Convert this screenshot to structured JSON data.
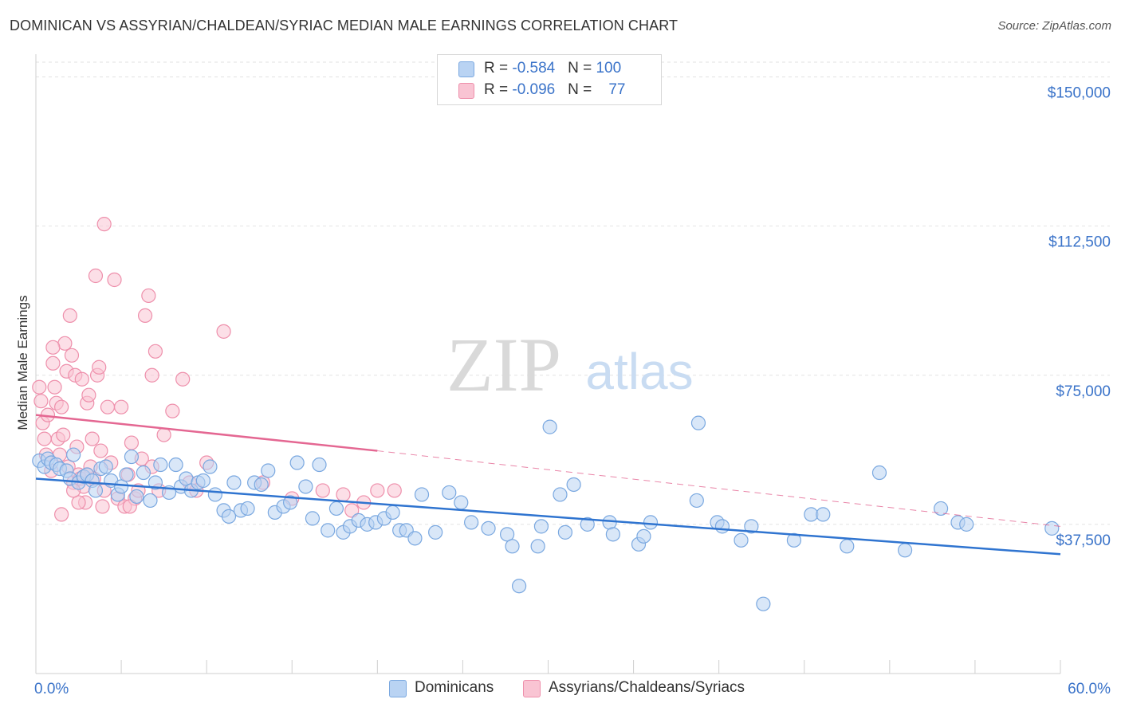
{
  "title": "DOMINICAN VS ASSYRIAN/CHALDEAN/SYRIAC MEDIAN MALE EARNINGS CORRELATION CHART",
  "source": "Source: ZipAtlas.com",
  "watermark": {
    "zip": "ZIP",
    "atlas": "atlas"
  },
  "legend": {
    "r_label": "R = ",
    "n_label": "N = ",
    "items": [
      {
        "name": "Dominicans",
        "r": "-0.584",
        "n": "100"
      },
      {
        "name": "Assyrians/Chaldeans/Syriacs",
        "r": "-0.096",
        "n": "77"
      }
    ]
  },
  "colors": {
    "blue_fill": "#b9d3f3",
    "blue_stroke": "#7aa8e0",
    "blue_line": "#2f74d0",
    "pink_fill": "#f9c4d3",
    "pink_stroke": "#ee8fab",
    "pink_line": "#e46792",
    "axis_text": "#3a73c9",
    "grid": "#e2e2e2"
  },
  "chart_data": {
    "type": "scatter",
    "title": "DOMINICAN VS ASSYRIAN/CHALDEAN/SYRIAC MEDIAN MALE EARNINGS CORRELATION CHART",
    "xlabel": "",
    "ylabel": "Median Male Earnings",
    "xlim": [
      0,
      60
    ],
    "ylim": [
      0,
      155000
    ],
    "x_tick_labels": [
      "0.0%",
      "60.0%"
    ],
    "y_ticks": [
      37500,
      75000,
      112500,
      150000
    ],
    "y_tick_labels": [
      "$37,500",
      "$75,000",
      "$112,500",
      "$150,000"
    ],
    "series": [
      {
        "name": "Dominicans",
        "r": -0.584,
        "n": 100,
        "trend": {
          "x": [
            0,
            60
          ],
          "y": [
            49000,
            30000
          ],
          "style": "solid"
        },
        "points": [
          [
            0.2,
            53500
          ],
          [
            0.5,
            52000
          ],
          [
            0.7,
            54000
          ],
          [
            0.9,
            53000
          ],
          [
            1.2,
            52500
          ],
          [
            1.4,
            51500
          ],
          [
            1.8,
            51000
          ],
          [
            2.0,
            49000
          ],
          [
            2.2,
            55000
          ],
          [
            2.5,
            48000
          ],
          [
            2.8,
            49500
          ],
          [
            3.0,
            50000
          ],
          [
            3.3,
            48500
          ],
          [
            3.5,
            46000
          ],
          [
            3.8,
            51500
          ],
          [
            4.1,
            52000
          ],
          [
            4.4,
            48500
          ],
          [
            4.8,
            45000
          ],
          [
            5.0,
            47000
          ],
          [
            5.3,
            50000
          ],
          [
            5.6,
            54500
          ],
          [
            5.9,
            44500
          ],
          [
            6.3,
            50500
          ],
          [
            6.7,
            43500
          ],
          [
            7.0,
            48000
          ],
          [
            7.3,
            52500
          ],
          [
            7.8,
            45500
          ],
          [
            8.2,
            52500
          ],
          [
            8.5,
            47000
          ],
          [
            8.8,
            49000
          ],
          [
            9.1,
            46000
          ],
          [
            9.5,
            48000
          ],
          [
            9.8,
            48500
          ],
          [
            10.2,
            52000
          ],
          [
            10.5,
            45000
          ],
          [
            11.0,
            41000
          ],
          [
            11.3,
            39500
          ],
          [
            11.6,
            48000
          ],
          [
            12.0,
            41000
          ],
          [
            12.4,
            41500
          ],
          [
            12.8,
            48000
          ],
          [
            13.2,
            47500
          ],
          [
            13.6,
            51000
          ],
          [
            14.0,
            40500
          ],
          [
            14.5,
            42000
          ],
          [
            14.9,
            43000
          ],
          [
            15.3,
            53000
          ],
          [
            15.8,
            47000
          ],
          [
            16.2,
            39000
          ],
          [
            16.6,
            52500
          ],
          [
            17.1,
            36000
          ],
          [
            17.6,
            41500
          ],
          [
            18.0,
            35500
          ],
          [
            18.4,
            37000
          ],
          [
            18.9,
            38500
          ],
          [
            19.4,
            37500
          ],
          [
            19.9,
            38000
          ],
          [
            20.4,
            39000
          ],
          [
            20.9,
            40500
          ],
          [
            21.3,
            36000
          ],
          [
            21.7,
            36000
          ],
          [
            22.2,
            34000
          ],
          [
            22.6,
            45000
          ],
          [
            23.4,
            35500
          ],
          [
            24.2,
            45500
          ],
          [
            24.9,
            43000
          ],
          [
            25.5,
            38000
          ],
          [
            26.5,
            36500
          ],
          [
            27.6,
            35000
          ],
          [
            27.9,
            32000
          ],
          [
            29.4,
            32000
          ],
          [
            29.6,
            37000
          ],
          [
            30.7,
            45000
          ],
          [
            31.0,
            35500
          ],
          [
            31.5,
            47500
          ],
          [
            32.3,
            37500
          ],
          [
            33.6,
            38000
          ],
          [
            33.8,
            35000
          ],
          [
            35.3,
            32500
          ],
          [
            35.6,
            34500
          ],
          [
            36.0,
            38000
          ],
          [
            38.7,
            43500
          ],
          [
            39.9,
            38000
          ],
          [
            40.2,
            37000
          ],
          [
            41.3,
            33500
          ],
          [
            41.9,
            37000
          ],
          [
            44.4,
            33500
          ],
          [
            45.4,
            40000
          ],
          [
            46.1,
            40000
          ],
          [
            47.5,
            32000
          ],
          [
            49.4,
            50500
          ],
          [
            50.9,
            31000
          ],
          [
            53.0,
            41500
          ],
          [
            54.0,
            38000
          ],
          [
            54.5,
            37500
          ],
          [
            59.5,
            36500
          ],
          [
            30.1,
            62000
          ],
          [
            38.8,
            63000
          ],
          [
            28.3,
            22000
          ],
          [
            42.6,
            17500
          ]
        ]
      },
      {
        "name": "Assyrians/Chaldeans/Syriacs",
        "r": -0.096,
        "n": 77,
        "trend": {
          "x": [
            0,
            20
          ],
          "y": [
            65000,
            56000
          ],
          "style": "solid"
        },
        "trend_extension": {
          "x": [
            20,
            60
          ],
          "y": [
            56000,
            37000
          ],
          "style": "dashed"
        },
        "points": [
          [
            0.2,
            72000
          ],
          [
            0.3,
            68500
          ],
          [
            0.4,
            63000
          ],
          [
            0.5,
            59000
          ],
          [
            0.6,
            55000
          ],
          [
            0.7,
            65000
          ],
          [
            0.9,
            51000
          ],
          [
            1.0,
            78000
          ],
          [
            1.1,
            72000
          ],
          [
            1.2,
            68000
          ],
          [
            1.3,
            59000
          ],
          [
            1.4,
            55000
          ],
          [
            1.5,
            67000
          ],
          [
            1.6,
            60000
          ],
          [
            1.7,
            83000
          ],
          [
            1.8,
            76000
          ],
          [
            1.9,
            52000
          ],
          [
            2.0,
            90000
          ],
          [
            2.1,
            80000
          ],
          [
            2.2,
            48000
          ],
          [
            2.3,
            75000
          ],
          [
            2.4,
            57000
          ],
          [
            2.5,
            50000
          ],
          [
            2.6,
            49000
          ],
          [
            2.7,
            74000
          ],
          [
            2.8,
            47000
          ],
          [
            2.9,
            43000
          ],
          [
            3.0,
            68000
          ],
          [
            3.1,
            70000
          ],
          [
            3.2,
            52000
          ],
          [
            3.3,
            59000
          ],
          [
            3.4,
            49000
          ],
          [
            3.5,
            100000
          ],
          [
            3.6,
            75000
          ],
          [
            3.7,
            77000
          ],
          [
            3.8,
            56000
          ],
          [
            3.9,
            42000
          ],
          [
            4.0,
            46000
          ],
          [
            4.2,
            67000
          ],
          [
            4.4,
            53000
          ],
          [
            4.6,
            99000
          ],
          [
            4.8,
            44000
          ],
          [
            5.0,
            67000
          ],
          [
            5.2,
            42000
          ],
          [
            5.4,
            50000
          ],
          [
            5.6,
            58000
          ],
          [
            5.8,
            44000
          ],
          [
            6.0,
            46000
          ],
          [
            6.2,
            54000
          ],
          [
            6.4,
            90000
          ],
          [
            6.6,
            95000
          ],
          [
            6.8,
            52000
          ],
          [
            7.0,
            81000
          ],
          [
            7.2,
            46000
          ],
          [
            7.5,
            60000
          ],
          [
            8.0,
            66000
          ],
          [
            8.6,
            74000
          ],
          [
            9.0,
            48000
          ],
          [
            9.4,
            46000
          ],
          [
            10.0,
            53000
          ],
          [
            11.0,
            86000
          ],
          [
            13.3,
            48000
          ],
          [
            15.0,
            44000
          ],
          [
            16.8,
            46000
          ],
          [
            18.0,
            45000
          ],
          [
            18.5,
            41000
          ],
          [
            19.2,
            43000
          ],
          [
            20.0,
            46000
          ],
          [
            21.0,
            46000
          ],
          [
            4.0,
            113000
          ],
          [
            1.0,
            82000
          ],
          [
            2.5,
            43000
          ],
          [
            3.0,
            50000
          ],
          [
            6.8,
            75000
          ],
          [
            1.5,
            40000
          ],
          [
            5.5,
            42000
          ],
          [
            2.2,
            46000
          ]
        ]
      }
    ]
  }
}
